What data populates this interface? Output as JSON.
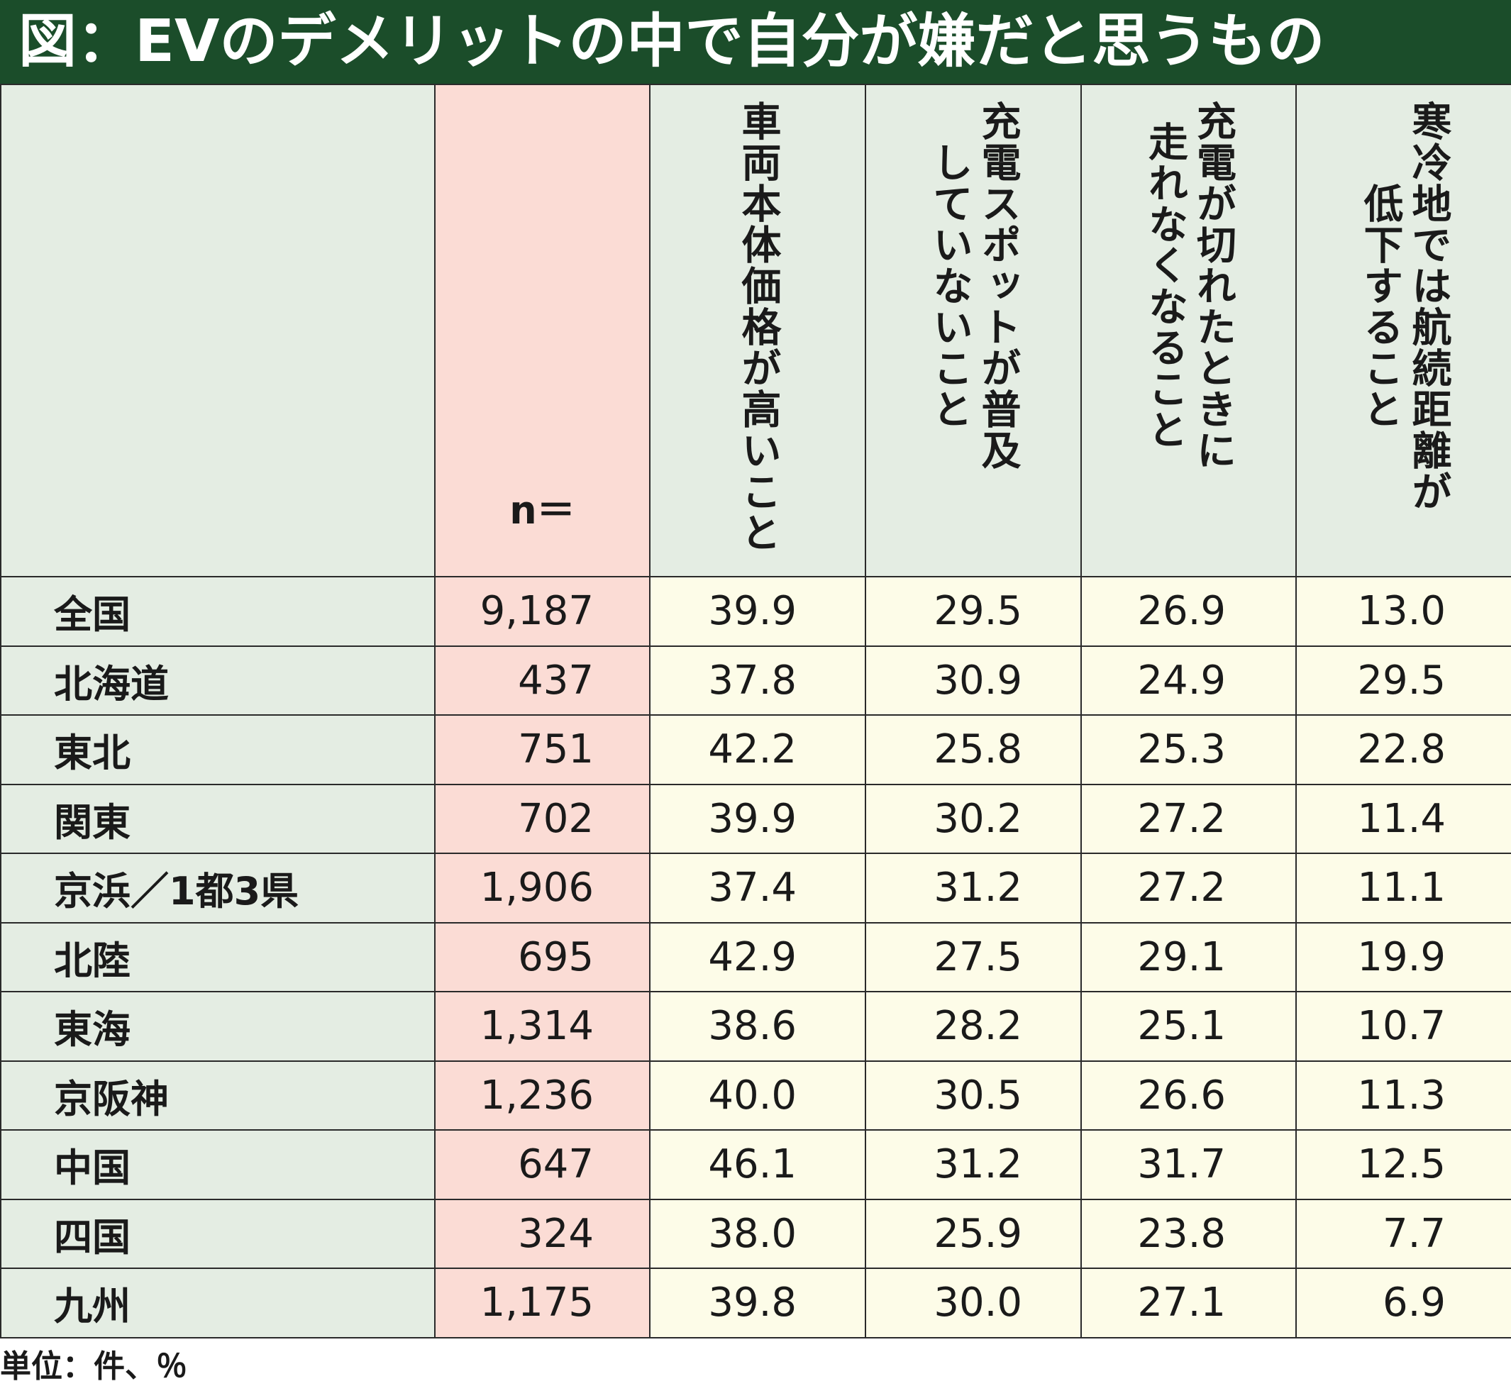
{
  "title": "図：EVのデメリットの中で自分が嫌だと思うもの",
  "unit_note": "単位：件、％",
  "chart_data": {
    "type": "table",
    "n_label": "n＝",
    "columns": [
      "車両本体価格が高いこと",
      "充電スポットが普及していないこと",
      "充電が切れたときに走れなくなること",
      "寒冷地では航続距離が低下すること"
    ],
    "column_lines": [
      [
        "車両本体価格が高いこと"
      ],
      [
        "充電スポットが普及",
        "していないこと"
      ],
      [
        "充電が切れたときに",
        "走れなくなること"
      ],
      [
        "寒冷地では航続距離が",
        "低下すること"
      ]
    ],
    "rows": [
      {
        "region": "全国",
        "n": "9,187",
        "values": [
          "39.9",
          "29.5",
          "26.9",
          "13.0"
        ]
      },
      {
        "region": "北海道",
        "n": "437",
        "values": [
          "37.8",
          "30.9",
          "24.9",
          "29.5"
        ]
      },
      {
        "region": "東北",
        "n": "751",
        "values": [
          "42.2",
          "25.8",
          "25.3",
          "22.8"
        ]
      },
      {
        "region": "関東",
        "n": "702",
        "values": [
          "39.9",
          "30.2",
          "27.2",
          "11.4"
        ]
      },
      {
        "region": "京浜／1都3県",
        "n": "1,906",
        "values": [
          "37.4",
          "31.2",
          "27.2",
          "11.1"
        ]
      },
      {
        "region": "北陸",
        "n": "695",
        "values": [
          "42.9",
          "27.5",
          "29.1",
          "19.9"
        ]
      },
      {
        "region": "東海",
        "n": "1,314",
        "values": [
          "38.6",
          "28.2",
          "25.1",
          "10.7"
        ]
      },
      {
        "region": "京阪神",
        "n": "1,236",
        "values": [
          "40.0",
          "30.5",
          "26.6",
          "11.3"
        ]
      },
      {
        "region": "中国",
        "n": "647",
        "values": [
          "46.1",
          "31.2",
          "31.7",
          "12.5"
        ]
      },
      {
        "region": "四国",
        "n": "324",
        "values": [
          "38.0",
          "25.9",
          "23.8",
          "7.7"
        ]
      },
      {
        "region": "九州",
        "n": "1,175",
        "values": [
          "39.8",
          "30.0",
          "27.1",
          "6.9"
        ]
      }
    ]
  },
  "colors": {
    "title_bg": "#1b4d2a",
    "header_bg": "#e4ede3",
    "n_column_bg": "#fbdcd5",
    "value_bg": "#fdfce8"
  }
}
